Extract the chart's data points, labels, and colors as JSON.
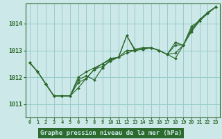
{
  "bg_color": "#cce8e8",
  "plot_bg_color": "#cce8e8",
  "grid_color": "#99cccc",
  "line_color": "#2d6a2d",
  "marker_color": "#2d6a2d",
  "xlabel": "Graphe pression niveau de la mer (hPa)",
  "xlabel_bg": "#2d6a2d",
  "xlabel_fg": "#cce8e8",
  "xlim": [
    -0.5,
    23.5
  ],
  "ylim": [
    1010.5,
    1014.75
  ],
  "yticks": [
    1011,
    1012,
    1013,
    1014
  ],
  "xticks": [
    0,
    1,
    2,
    3,
    4,
    5,
    6,
    7,
    8,
    9,
    10,
    11,
    12,
    13,
    14,
    15,
    16,
    17,
    18,
    19,
    20,
    21,
    22,
    23
  ],
  "series": [
    [
      1012.55,
      1012.2,
      1011.75,
      1011.3,
      1011.3,
      1011.3,
      1011.8,
      1011.95,
      1012.3,
      1012.4,
      1012.6,
      1012.75,
      1013.55,
      1013.0,
      1013.05,
      1013.1,
      1013.0,
      1012.85,
      1012.7,
      1013.2,
      1013.7,
      1014.1,
      1014.4,
      1014.62
    ],
    [
      1012.55,
      1012.2,
      1011.75,
      1011.3,
      1011.3,
      1011.3,
      1012.0,
      1012.2,
      1012.35,
      1012.5,
      1012.65,
      1012.75,
      1013.0,
      1013.0,
      1013.05,
      1013.1,
      1013.0,
      1012.85,
      1013.3,
      1013.2,
      1013.8,
      1014.15,
      1014.42,
      1014.62
    ],
    [
      1012.55,
      1012.2,
      1011.75,
      1011.3,
      1011.3,
      1011.3,
      1011.6,
      1011.95,
      1012.3,
      1012.5,
      1012.7,
      1012.75,
      1013.55,
      1013.05,
      1013.1,
      1013.1,
      1013.0,
      1012.85,
      1012.9,
      1013.2,
      1013.9,
      1014.1,
      1014.38,
      1014.62
    ],
    [
      1012.55,
      1012.2,
      1011.75,
      1011.3,
      1011.3,
      1011.3,
      1011.9,
      1012.05,
      1011.9,
      1012.35,
      1012.65,
      1012.75,
      1012.9,
      1013.0,
      1013.05,
      1013.1,
      1013.0,
      1012.85,
      1013.2,
      1013.2,
      1013.75,
      1014.1,
      1014.38,
      1014.62
    ]
  ]
}
